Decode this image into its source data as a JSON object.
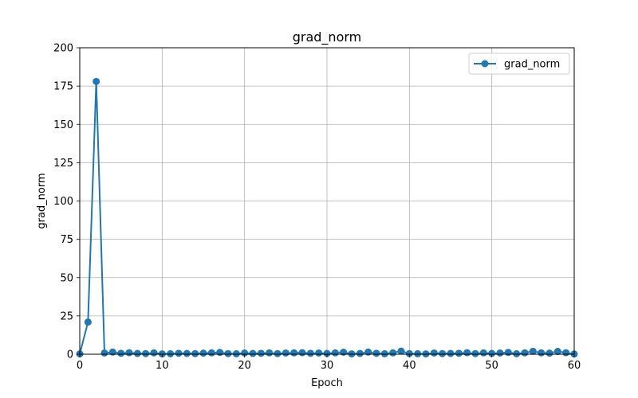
{
  "chart_data": {
    "type": "line",
    "title": "grad_norm",
    "xlabel": "Epoch",
    "ylabel": "grad_norm",
    "xlim": [
      0,
      60
    ],
    "ylim": [
      0,
      200
    ],
    "xticks": [
      0,
      10,
      20,
      30,
      40,
      50,
      60
    ],
    "yticks": [
      0,
      25,
      50,
      75,
      100,
      125,
      150,
      175,
      200
    ],
    "grid": true,
    "legend_position": "top-right",
    "series": [
      {
        "name": "grad_norm",
        "color": "#1f77b4",
        "marker": "circle",
        "x": [
          0,
          1,
          2,
          3,
          4,
          5,
          6,
          7,
          8,
          9,
          10,
          11,
          12,
          13,
          14,
          15,
          16,
          17,
          18,
          19,
          20,
          21,
          22,
          23,
          24,
          25,
          26,
          27,
          28,
          29,
          30,
          31,
          32,
          33,
          34,
          35,
          36,
          37,
          38,
          39,
          40,
          41,
          42,
          43,
          44,
          45,
          46,
          47,
          48,
          49,
          50,
          51,
          52,
          53,
          54,
          55,
          56,
          57,
          58,
          59,
          60
        ],
        "values": [
          0.2,
          21,
          178,
          0.8,
          1.4,
          0.6,
          1.0,
          0.5,
          0.4,
          0.9,
          0.2,
          0.3,
          0.6,
          0.5,
          0.4,
          0.7,
          0.9,
          1.2,
          0.4,
          0.3,
          0.8,
          0.5,
          0.6,
          0.9,
          0.4,
          0.8,
          0.9,
          1.0,
          0.6,
          0.8,
          0.5,
          0.9,
          1.3,
          0.2,
          0.5,
          1.4,
          0.6,
          0.3,
          0.9,
          2.0,
          0.4,
          0.3,
          0.2,
          0.8,
          0.4,
          0.5,
          0.6,
          1.0,
          0.4,
          0.9,
          0.5,
          0.8,
          1.2,
          0.3,
          0.9,
          1.9,
          0.9,
          0.7,
          1.8,
          1.0,
          0.1
        ]
      }
    ]
  }
}
